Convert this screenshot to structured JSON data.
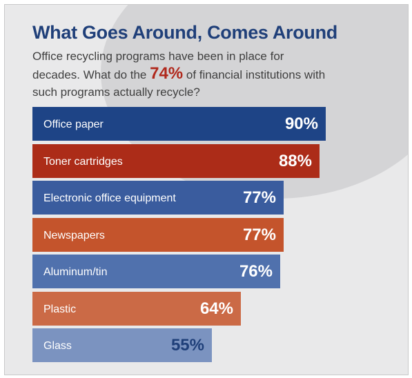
{
  "header": {
    "title": "What Goes Around, Comes Around",
    "subtitle_before": "Office recycling programs have been in place for decades. What do the ",
    "subtitle_highlight": "74%",
    "subtitle_after": " of financial institutions with such programs actually recycle?"
  },
  "colors": {
    "background": "#e9e9ea",
    "arc": "#d4d4d6",
    "title": "#1f3f79",
    "highlight": "#b0281c"
  },
  "chart_data": {
    "type": "bar",
    "orientation": "horizontal",
    "categories": [
      "Office paper",
      "Toner cartridges",
      "Electronic office equipment",
      "Newspapers",
      "Aluminum/tin",
      "Plastic",
      "Glass"
    ],
    "values": [
      90,
      88,
      77,
      77,
      76,
      64,
      55
    ],
    "value_labels": [
      "90%",
      "88%",
      "77%",
      "77%",
      "76%",
      "64%",
      "55%"
    ],
    "bar_colors": [
      "#1e4486",
      "#ac2c18",
      "#3a5c9e",
      "#c4542c",
      "#5071ad",
      "#cb6a46",
      "#7b93c0"
    ],
    "title": "What Goes Around, Comes Around",
    "xlabel": "",
    "ylabel": "",
    "xlim": [
      0,
      100
    ]
  }
}
